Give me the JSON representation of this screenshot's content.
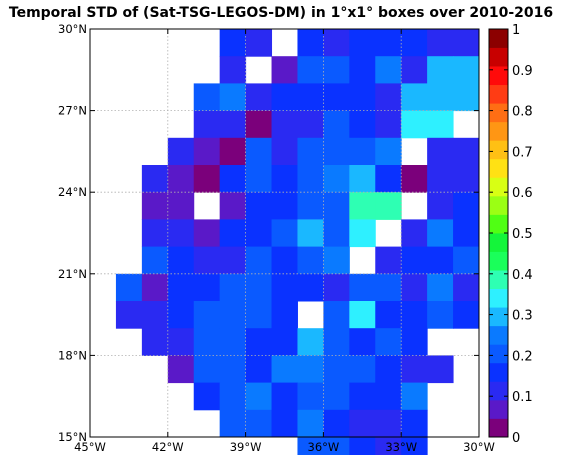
{
  "chart_data": {
    "type": "heatmap",
    "title": "Temporal STD of (Sat-TSG-LEGOS-DM) in 1°x1° boxes over 2010-2016",
    "xlabel": "",
    "ylabel": "",
    "x_ticks": [
      "45°W",
      "42°W",
      "39°W",
      "36°W",
      "33°W",
      "30°W"
    ],
    "y_ticks": [
      "15°N",
      "18°N",
      "21°N",
      "24°N",
      "27°N",
      "30°N"
    ],
    "x_range_deg_east": [
      -45,
      -30
    ],
    "y_range_deg_north": [
      15,
      30
    ],
    "cell_size_deg": 1,
    "grid": true,
    "colorbar": {
      "ticks": [
        "0",
        "0.1",
        "0.2",
        "0.3",
        "0.4",
        "0.5",
        "0.6",
        "0.7",
        "0.8",
        "0.9",
        "1"
      ],
      "range": [
        0,
        1
      ],
      "colors": [
        "#7b007b",
        "#5a19c8",
        "#2a2af2",
        "#0a32ff",
        "#0a5aff",
        "#0a7aff",
        "#1ab8ff",
        "#2ef0ff",
        "#2effb3",
        "#1aff5a",
        "#14f53a",
        "#50ff14",
        "#9bff14",
        "#d8ff14",
        "#ffe114",
        "#ffc014",
        "#ff9614",
        "#ff6e14",
        "#ff3c14",
        "#ff0a0a",
        "#c80000",
        "#8c0000"
      ]
    },
    "row_starts_lon": [
      -45,
      -45,
      -45,
      -45,
      -45,
      -45,
      -44,
      -44,
      -44,
      -44,
      -44,
      -43,
      -42,
      -41,
      -40,
      -37
    ],
    "rows_lat_top_down": [
      [
        null,
        null,
        null,
        null,
        null,
        0.18,
        0.12,
        null,
        0.18,
        0.12,
        0.18,
        0.18,
        0.15,
        0.12,
        0.1
      ],
      [
        null,
        null,
        null,
        null,
        null,
        0.12,
        null,
        0.08,
        0.2,
        0.2,
        0.18,
        0.25,
        0.1,
        0.3,
        0.3
      ],
      [
        null,
        null,
        null,
        null,
        0.22,
        0.26,
        0.1,
        0.18,
        0.18,
        0.18,
        0.18,
        0.12,
        0.3,
        0.3,
        0.3
      ],
      [
        null,
        null,
        null,
        null,
        0.12,
        0.12,
        0.04,
        0.12,
        0.12,
        0.22,
        0.18,
        0.12,
        0.36,
        0.36,
        null
      ],
      [
        null,
        null,
        null,
        0.12,
        0.08,
        0.04,
        0.2,
        0.12,
        0.2,
        0.22,
        0.22,
        0.26,
        null,
        0.12,
        0.12
      ],
      [
        null,
        null,
        0.1,
        0.08,
        0.04,
        0.18,
        0.2,
        0.18,
        0.2,
        0.25,
        0.3,
        0.18,
        0.04,
        0.12,
        0.12
      ],
      [
        null,
        0.08,
        0.08,
        null,
        0.08,
        0.18,
        0.18,
        0.2,
        0.2,
        0.4,
        0.4,
        null,
        0.12,
        0.18,
        0.25
      ],
      [
        null,
        0.12,
        0.12,
        0.06,
        0.18,
        0.18,
        0.2,
        0.3,
        0.2,
        0.36,
        null,
        0.12,
        0.25,
        0.18,
        0.2
      ],
      [
        null,
        0.2,
        0.18,
        0.12,
        0.12,
        0.2,
        0.18,
        0.2,
        0.25,
        null,
        0.12,
        0.18,
        0.18,
        0.2,
        0.2
      ],
      [
        0.2,
        0.06,
        0.18,
        0.18,
        0.2,
        0.2,
        0.18,
        0.15,
        0.12,
        0.2,
        0.2,
        0.12,
        0.25,
        0.12,
        0.18
      ],
      [
        0.12,
        0.12,
        0.18,
        0.2,
        0.2,
        0.2,
        0.18,
        null,
        0.2,
        0.36,
        0.18,
        0.18,
        0.2,
        0.18,
        null
      ],
      [
        0.1,
        0.1,
        0.2,
        0.2,
        0.18,
        0.18,
        0.3,
        0.2,
        0.18,
        0.2,
        0.18,
        null,
        null,
        null,
        null
      ],
      [
        0.08,
        0.2,
        0.2,
        0.18,
        0.26,
        0.26,
        0.2,
        0.2,
        0.18,
        0.12,
        0.1,
        null,
        null,
        null,
        null
      ],
      [
        0.18,
        0.2,
        0.26,
        0.18,
        0.2,
        0.2,
        0.18,
        0.18,
        0.26,
        null,
        null,
        null,
        null,
        null,
        null
      ],
      [
        0.2,
        0.2,
        0.18,
        0.26,
        0.18,
        0.12,
        0.12,
        0.18,
        null,
        null,
        null,
        null,
        null,
        null,
        null
      ],
      [
        0.2,
        0.2,
        0.18,
        0.12,
        0.18,
        null,
        null,
        null,
        null,
        null,
        null,
        null,
        null,
        null,
        null
      ]
    ]
  }
}
